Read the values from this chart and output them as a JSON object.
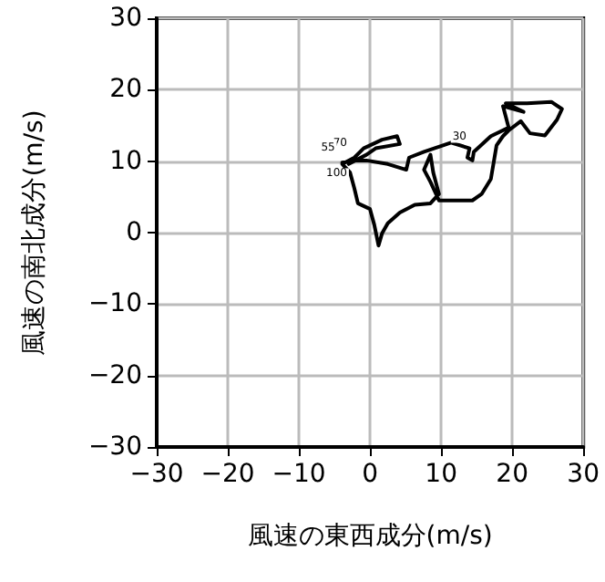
{
  "chart_data": {
    "type": "line",
    "xlabel": "風速の東西成分(m/s)",
    "ylabel": "風速の南北成分(m/s)",
    "xlim": [
      -30,
      30
    ],
    "ylim": [
      -30,
      30
    ],
    "xticks": [
      -30,
      -20,
      -10,
      0,
      10,
      20,
      30
    ],
    "yticks": [
      -30,
      -20,
      -10,
      0,
      10,
      20,
      30
    ],
    "grid": true,
    "marker": "none",
    "line_style": "solid",
    "series": [
      {
        "color": "#000000",
        "x": [
          -3.9,
          -2.6,
          -0.5,
          2.5,
          5.1,
          5.5,
          7.6,
          11.4,
          14.0,
          13.7,
          14.4,
          14.6,
          17.0,
          19.5,
          18.7,
          21.6,
          19.1,
          22.1,
          25.5,
          27.0,
          26.3,
          24.6,
          22.5,
          21.2,
          19.5,
          18.7,
          17.8,
          17.0,
          15.7,
          14.4,
          9.7,
          8.5,
          7.6,
          8.5,
          8.9,
          9.7,
          8.5,
          6.3,
          4.2,
          2.5,
          1.7,
          1.2,
          0.6,
          0.0,
          -1.7,
          -2.2,
          -2.8,
          -3.9,
          -2.2,
          -0.9,
          1.7,
          3.8,
          4.2,
          0.8,
          -0.5,
          -3.0
        ],
        "values": [
          9.8,
          10.1,
          10.1,
          9.6,
          8.8,
          10.5,
          11.3,
          12.6,
          11.8,
          10.5,
          10.1,
          11.3,
          13.5,
          14.7,
          17.7,
          16.9,
          18.1,
          18.1,
          18.3,
          17.3,
          15.8,
          13.6,
          13.9,
          15.6,
          14.3,
          13.5,
          12.2,
          7.5,
          5.4,
          4.5,
          4.5,
          7.1,
          8.8,
          10.9,
          8.4,
          5.4,
          4.1,
          3.9,
          2.8,
          1.3,
          -0.1,
          -1.8,
          1.1,
          3.3,
          4.1,
          6.2,
          8.4,
          9.6,
          10.5,
          11.8,
          13.0,
          13.5,
          12.4,
          11.8,
          10.9,
          9.6
        ]
      }
    ],
    "annotations": [
      {
        "text": "70",
        "x": -2.2,
        "y": 10.5
      },
      {
        "text": "55",
        "x": -3.9,
        "y": 9.8
      },
      {
        "text": "100",
        "x": -2.2,
        "y": 6.2
      },
      {
        "text": "30",
        "x": 14.6,
        "y": 11.3
      }
    ]
  }
}
